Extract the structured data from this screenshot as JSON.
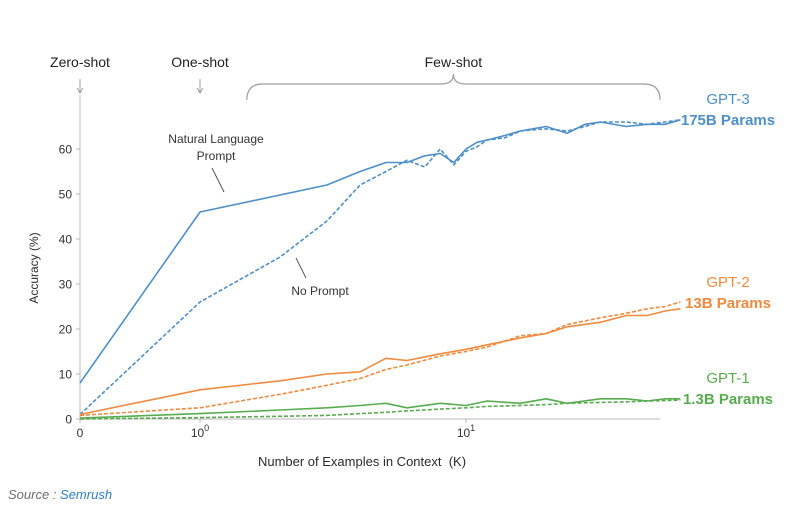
{
  "chart_data": {
    "type": "line",
    "xlabel": "Number of Examples in Context  (K)",
    "ylabel": "Accuracy (%)",
    "x_scale": "symlog",
    "ylim": [
      0,
      68
    ],
    "yticks": [
      0,
      10,
      20,
      30,
      40,
      50,
      60
    ],
    "xticks": [
      {
        "value": 0,
        "label": "0"
      },
      {
        "value": 1,
        "label": "10",
        "exp": "0"
      },
      {
        "value": 10,
        "label": "10",
        "exp": "1"
      }
    ],
    "grid": false,
    "regions": [
      {
        "label": "Zero-shot",
        "x": 0
      },
      {
        "label": "One-shot",
        "x": 1
      },
      {
        "label": "Few-shot",
        "from": 1.5,
        "to": 64
      }
    ],
    "annotations": [
      {
        "text": "Natural Language",
        "text2": "Prompt"
      },
      {
        "text": "No Prompt"
      }
    ],
    "model_labels": [
      {
        "line1": "GPT-3",
        "line2": "175B Params",
        "color": "#4e8fc7"
      },
      {
        "line1": "GPT-2",
        "line2": "13B Params",
        "color": "#ef8a3e"
      },
      {
        "line1": "GPT-1",
        "line2": "1.3B Params",
        "color": "#58ac4f"
      }
    ],
    "series": [
      {
        "model": "GPT-3",
        "style": "solid",
        "color": "#4e8fc7",
        "x": [
          0,
          1,
          3,
          4,
          5,
          6,
          7,
          8,
          9,
          10,
          11,
          12,
          14,
          16,
          20,
          24,
          28,
          32,
          40,
          48,
          56,
          64
        ],
        "y": [
          8,
          46,
          52,
          55,
          57,
          57,
          58.5,
          59,
          57,
          60,
          61.5,
          62,
          63,
          64,
          65,
          63.5,
          65.5,
          66,
          65,
          65.5,
          65.5,
          66.5
        ]
      },
      {
        "model": "GPT-3",
        "style": "dashed",
        "color": "#4e8fc7",
        "x": [
          0,
          1,
          2,
          3,
          4,
          5,
          6,
          7,
          8,
          9,
          10,
          11,
          12,
          14,
          16,
          20,
          24,
          28,
          32,
          40,
          48,
          56,
          64
        ],
        "y": [
          1,
          26,
          36,
          44,
          52,
          55,
          57.5,
          56,
          60,
          56.5,
          59.5,
          60.5,
          62,
          62.5,
          64,
          64.5,
          64,
          65,
          66,
          66,
          65.5,
          66,
          66.5
        ]
      },
      {
        "model": "GPT-2",
        "style": "solid",
        "color": "#ef8a3e",
        "x": [
          0,
          1,
          2,
          3,
          4,
          5,
          6,
          8,
          10,
          12,
          16,
          20,
          24,
          32,
          40,
          48,
          56,
          64
        ],
        "y": [
          1,
          6.5,
          8.5,
          10,
          10.5,
          13.5,
          13,
          14.5,
          15.5,
          16.5,
          18,
          19,
          20.5,
          21.5,
          23,
          23,
          24,
          24.5
        ]
      },
      {
        "model": "GPT-2",
        "style": "dashed",
        "color": "#ef8a3e",
        "x": [
          0,
          1,
          2,
          3,
          4,
          5,
          6,
          8,
          10,
          12,
          16,
          20,
          24,
          32,
          40,
          48,
          56,
          64
        ],
        "y": [
          0.8,
          2.5,
          5.5,
          7.5,
          9,
          11,
          12,
          14,
          15,
          16,
          18.5,
          19,
          21,
          22.5,
          23.5,
          24.5,
          25,
          26
        ]
      },
      {
        "model": "GPT-1",
        "style": "solid",
        "color": "#58ac4f",
        "x": [
          0,
          1,
          2,
          3,
          4,
          5,
          6,
          8,
          10,
          12,
          16,
          20,
          24,
          32,
          40,
          48,
          56,
          64
        ],
        "y": [
          0.2,
          1.2,
          2,
          2.5,
          3,
          3.5,
          2.5,
          3.5,
          3,
          4,
          3.5,
          4.5,
          3.5,
          4.5,
          4.5,
          4,
          4.5,
          4.5
        ]
      },
      {
        "model": "GPT-1",
        "style": "dashed",
        "color": "#58ac4f",
        "x": [
          0,
          1,
          2,
          3,
          4,
          5,
          6,
          8,
          10,
          12,
          16,
          20,
          24,
          32,
          40,
          48,
          56,
          64
        ],
        "y": [
          0,
          0.3,
          0.6,
          0.8,
          1.2,
          1.5,
          1.8,
          2.2,
          2.5,
          2.8,
          3,
          3.2,
          3.5,
          3.7,
          3.8,
          4,
          4.1,
          4.2
        ]
      }
    ]
  },
  "source": {
    "label": "Source : ",
    "link": "Semrush"
  }
}
